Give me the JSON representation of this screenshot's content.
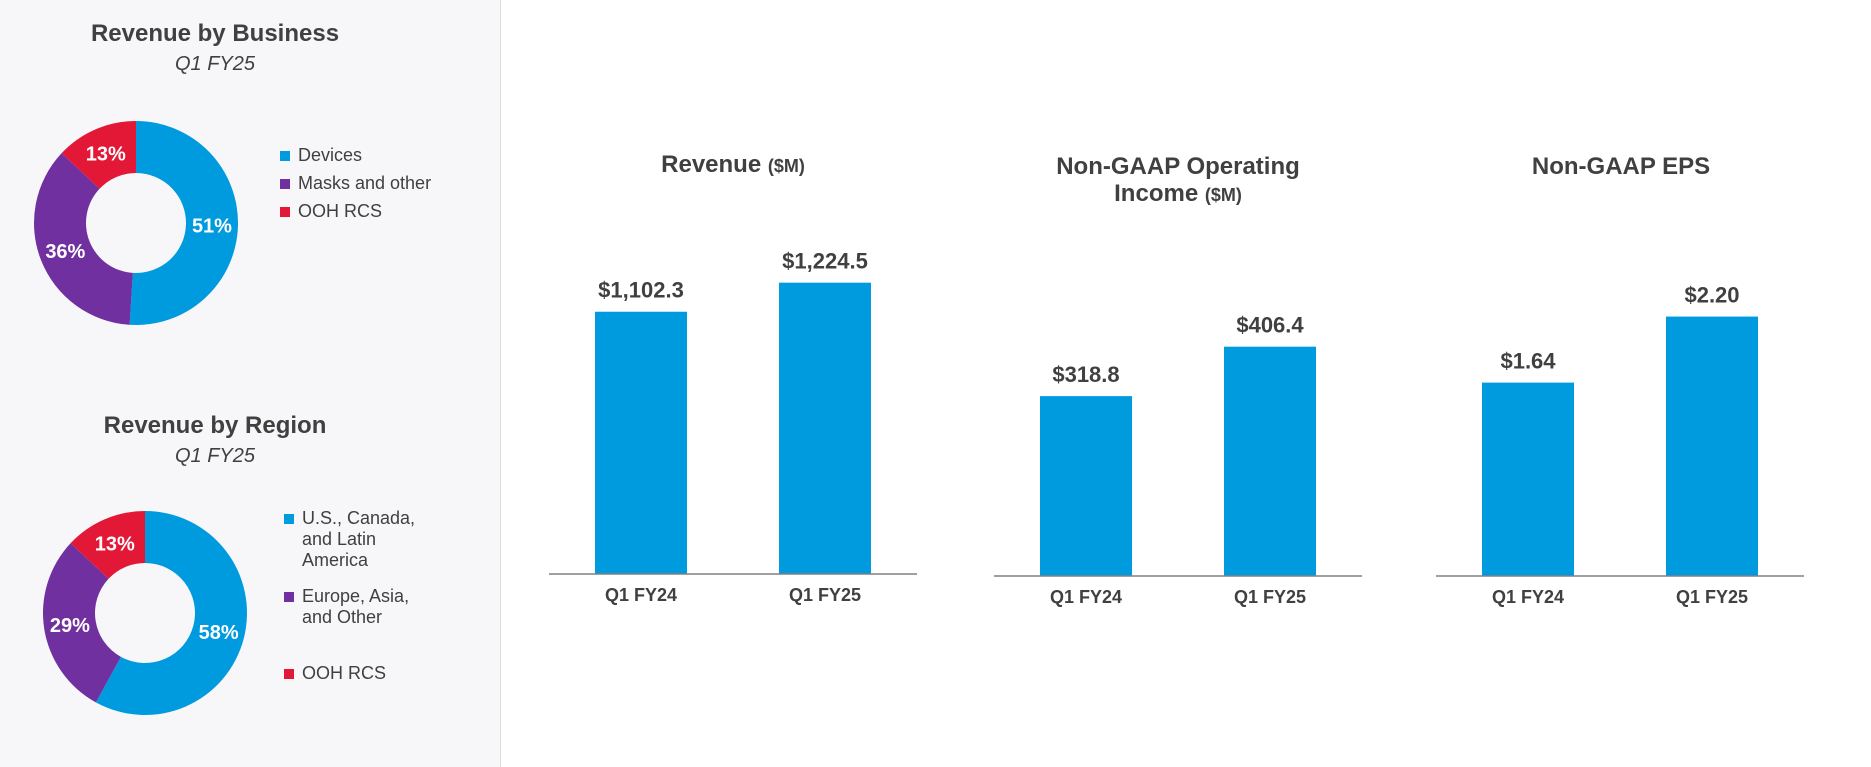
{
  "colors": {
    "blue": "#009ADE",
    "purple": "#7030A0",
    "red": "#E31837",
    "axis": "#808080",
    "text": "#404040"
  },
  "chart_data": [
    {
      "type": "pie",
      "title": "Revenue by Business",
      "subtitle": "Q1 FY25",
      "labels": [
        "Devices",
        "Masks and other",
        "OOH RCS"
      ],
      "values": [
        51,
        36,
        13
      ],
      "value_labels": [
        "51%",
        "36%",
        "13%"
      ],
      "colors": [
        "#009ADE",
        "#7030A0",
        "#E31837"
      ],
      "legend": "right"
    },
    {
      "type": "pie",
      "title": "Revenue by Region",
      "subtitle": "Q1 FY25",
      "labels": [
        "U.S., Canada, and Latin America",
        "Europe, Asia, and Other",
        "OOH RCS"
      ],
      "values": [
        58,
        29,
        13
      ],
      "value_labels": [
        "58%",
        "29%",
        "13%"
      ],
      "colors": [
        "#009ADE",
        "#7030A0",
        "#E31837"
      ],
      "legend": "right"
    },
    {
      "type": "bar",
      "title": "Revenue",
      "title_unit": "($M)",
      "categories": [
        "Q1 FY24",
        "Q1 FY25"
      ],
      "values": [
        1102.3,
        1224.5
      ],
      "value_labels": [
        "$1,102.3",
        "$1,224.5"
      ],
      "ylim": [
        0,
        1345
      ]
    },
    {
      "type": "bar",
      "title": "Non-GAAP Operating Income",
      "title_unit": "($M)",
      "categories": [
        "Q1 FY24",
        "Q1 FY25"
      ],
      "values": [
        318.8,
        406.4
      ],
      "value_labels": [
        "$318.8",
        "$406.4"
      ],
      "ylim": [
        0,
        498
      ]
    },
    {
      "type": "bar",
      "title": "Non-GAAP EPS",
      "title_unit": "",
      "categories": [
        "Q1 FY24",
        "Q1 FY25"
      ],
      "values": [
        1.64,
        2.2
      ],
      "value_labels": [
        "$1.64",
        "$2.20"
      ],
      "ylim": [
        0,
        2.4
      ]
    }
  ]
}
